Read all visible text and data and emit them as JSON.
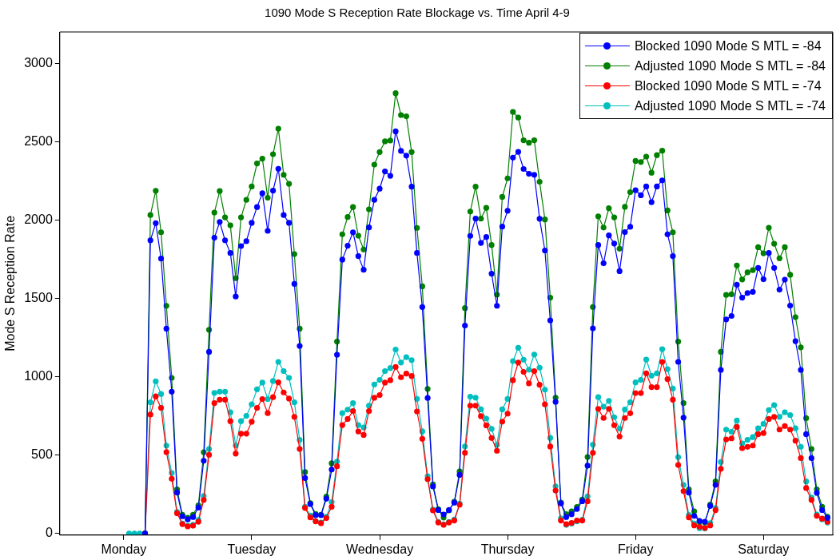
{
  "chart_data": {
    "type": "line",
    "title": "1090 Mode S Reception Rate Blockage vs. Time April 4-9",
    "ylabel": "Mode S Reception Rate",
    "categories": [
      null,
      null,
      null,
      null,
      null,
      null,
      null,
      null,
      null,
      null,
      null,
      null,
      "Monday",
      null,
      null,
      null,
      null,
      null,
      null,
      null,
      null,
      null,
      null,
      null,
      null,
      null,
      null,
      null,
      null,
      null,
      null,
      null,
      null,
      null,
      null,
      null,
      "Tuesday",
      null,
      null,
      null,
      null,
      null,
      null,
      null,
      null,
      null,
      null,
      null,
      null,
      null,
      null,
      null,
      null,
      null,
      null,
      null,
      null,
      null,
      null,
      null,
      "Wednesday",
      null,
      null,
      null,
      null,
      null,
      null,
      null,
      null,
      null,
      null,
      null,
      null,
      null,
      null,
      null,
      null,
      null,
      null,
      null,
      null,
      null,
      null,
      null,
      "Thursday",
      null,
      null,
      null,
      null,
      null,
      null,
      null,
      null,
      null,
      null,
      null,
      null,
      null,
      null,
      null,
      null,
      null,
      null,
      null,
      null,
      null,
      null,
      null,
      "Friday",
      null,
      null,
      null,
      null,
      null,
      null,
      null,
      null,
      null,
      null,
      null,
      null,
      null,
      null,
      null,
      null,
      null,
      null,
      null,
      null,
      null,
      null,
      null,
      "Saturday",
      null,
      null,
      null,
      null,
      null,
      null,
      null,
      null,
      null,
      null,
      null,
      null,
      null
    ],
    "ylim": [
      -10,
      3200
    ],
    "yticks": [
      0,
      500,
      1000,
      1500,
      2000,
      2500,
      3000
    ],
    "grid": false,
    "legend": "top right",
    "marker": "circle",
    "line_style": "solid",
    "series": [
      {
        "name": "Blocked 1090 Mode S MTL = -84",
        "color": "#0000ff",
        "values": [
          null,
          null,
          null,
          null,
          null,
          null,
          null,
          null,
          null,
          null,
          null,
          null,
          null,
          null,
          null,
          null,
          0,
          1871,
          1980,
          1754,
          1307,
          905,
          261,
          110,
          90,
          105,
          165,
          464,
          1159,
          1887,
          1988,
          1871,
          1790,
          1512,
          1834,
          1865,
          1982,
          2083,
          2171,
          1931,
          2188,
          2327,
          2032,
          1982,
          1593,
          1197,
          354,
          188,
          117,
          117,
          222,
          408,
          1141,
          1748,
          1836,
          1922,
          1770,
          1683,
          1953,
          2129,
          2200,
          2310,
          2282,
          2566,
          2441,
          2411,
          2213,
          1790,
          1445,
          865,
          300,
          150,
          121,
          150,
          197,
          374,
          1327,
          1899,
          2009,
          1854,
          1892,
          1658,
          1453,
          1958,
          2059,
          2398,
          2435,
          2326,
          2295,
          2289,
          2008,
          1806,
          1360,
          840,
          192,
          105,
          123,
          156,
          206,
          433,
          1309,
          1841,
          1724,
          1902,
          1850,
          1674,
          1923,
          1957,
          2190,
          2158,
          2214,
          2114,
          2214,
          2253,
          1909,
          1770,
          1095,
          739,
          261,
          112,
          80,
          75,
          176,
          310,
          1044,
          1366,
          1388,
          1587,
          1505,
          1534,
          1542,
          1695,
          1622,
          1790,
          1695,
          1556,
          1620,
          1454,
          1227,
          1044,
          634,
          481,
          259,
          150,
          100,
          null
        ]
      },
      {
        "name": "Adjusted 1090 Mode S MTL = -84",
        "color": "#008000",
        "values": [
          null,
          null,
          null,
          null,
          null,
          null,
          null,
          null,
          null,
          null,
          null,
          null,
          null,
          null,
          null,
          null,
          0,
          2032,
          2187,
          1922,
          1453,
          993,
          281,
          120,
          100,
          120,
          180,
          519,
          1300,
          2048,
          2185,
          2017,
          1966,
          1629,
          2017,
          2129,
          2214,
          2361,
          2392,
          2142,
          2420,
          2583,
          2288,
          2231,
          1783,
          1307,
          392,
          193,
          125,
          120,
          236,
          448,
          1225,
          1909,
          2019,
          2083,
          1900,
          1812,
          2068,
          2354,
          2434,
          2502,
          2507,
          2809,
          2670,
          2662,
          2434,
          1950,
          1577,
          923,
          313,
          155,
          102,
          147,
          202,
          396,
          1438,
          2054,
          2213,
          2009,
          2078,
          1841,
          1524,
          2148,
          2266,
          2690,
          2654,
          2509,
          2493,
          2509,
          2244,
          2004,
          1505,
          867,
          197,
          123,
          141,
          170,
          216,
          488,
          1445,
          2024,
          1952,
          2075,
          2017,
          1817,
          2084,
          2178,
          2377,
          2370,
          2405,
          2302,
          2414,
          2442,
          2061,
          1922,
          1225,
          832,
          281,
          142,
          75,
          70,
          185,
          332,
          1159,
          1522,
          1526,
          1710,
          1621,
          1666,
          1680,
          1827,
          1788,
          1951,
          1849,
          1756,
          1827,
          1651,
          1380,
          1188,
          736,
          539,
          281,
          171,
          107,
          null
        ]
      },
      {
        "name": "Blocked 1090 Mode S MTL = -74",
        "color": "#ff0000",
        "values": [
          null,
          null,
          null,
          null,
          null,
          null,
          null,
          null,
          null,
          null,
          null,
          null,
          null,
          null,
          null,
          null,
          0,
          759,
          875,
          802,
          519,
          349,
          129,
          60,
          45,
          50,
          75,
          214,
          502,
          832,
          854,
          854,
          717,
          510,
          637,
          637,
          713,
          802,
          858,
          768,
          870,
          964,
          900,
          861,
          744,
          539,
          163,
          103,
          78,
          66,
          98,
          171,
          429,
          692,
          731,
          781,
          651,
          629,
          781,
          866,
          883,
          963,
          978,
          1063,
          997,
          1020,
          1005,
          779,
          604,
          347,
          147,
          70,
          55,
          70,
          83,
          184,
          515,
          816,
          816,
          749,
          690,
          609,
          528,
          714,
          765,
          978,
          1091,
          1031,
          958,
          1036,
          949,
          824,
          555,
          274,
          83,
          60,
          68,
          83,
          83,
          206,
          515,
          795,
          737,
          795,
          691,
          618,
          737,
          767,
          896,
          896,
          1022,
          934,
          934,
          1095,
          985,
          854,
          437,
          270,
          103,
          52,
          44,
          36,
          52,
          149,
          413,
          600,
          607,
          680,
          544,
          553,
          561,
          634,
          641,
          731,
          744,
          663,
          686,
          663,
          592,
          481,
          290,
          214,
          112,
          95,
          75,
          null
        ]
      },
      {
        "name": "Adjusted 1090 Mode S MTL = -74",
        "color": "#00bfbf",
        "values": [
          null,
          null,
          null,
          null,
          null,
          null,
          null,
          null,
          null,
          null,
          null,
          null,
          null,
          0,
          0,
          0,
          0,
          837,
          971,
          890,
          561,
          386,
          137,
          64,
          49,
          56,
          86,
          239,
          539,
          897,
          905,
          905,
          773,
          561,
          717,
          751,
          824,
          920,
          963,
          858,
          973,
          1095,
          1036,
          993,
          837,
          597,
          171,
          115,
          78,
          70,
          107,
          200,
          459,
          768,
          790,
          832,
          692,
          676,
          815,
          951,
          980,
          1036,
          1056,
          1174,
          1091,
          1125,
          1106,
          859,
          652,
          366,
          153,
          74,
          59,
          74,
          89,
          191,
          556,
          873,
          867,
          792,
          733,
          668,
          566,
          792,
          859,
          1100,
          1185,
          1109,
          1045,
          1142,
          1058,
          918,
          610,
          301,
          97,
          55,
          63,
          77,
          88,
          237,
          567,
          870,
          809,
          846,
          742,
          669,
          791,
          837,
          964,
          980,
          1110,
          1007,
          1022,
          1176,
          1049,
          925,
          487,
          310,
          119,
          64,
          34,
          32,
          66,
          163,
          456,
          663,
          649,
          721,
          575,
          598,
          615,
          671,
          700,
          788,
          819,
          744,
          774,
          756,
          671,
          553,
          332,
          229,
          121,
          90,
          70,
          null
        ]
      }
    ]
  }
}
